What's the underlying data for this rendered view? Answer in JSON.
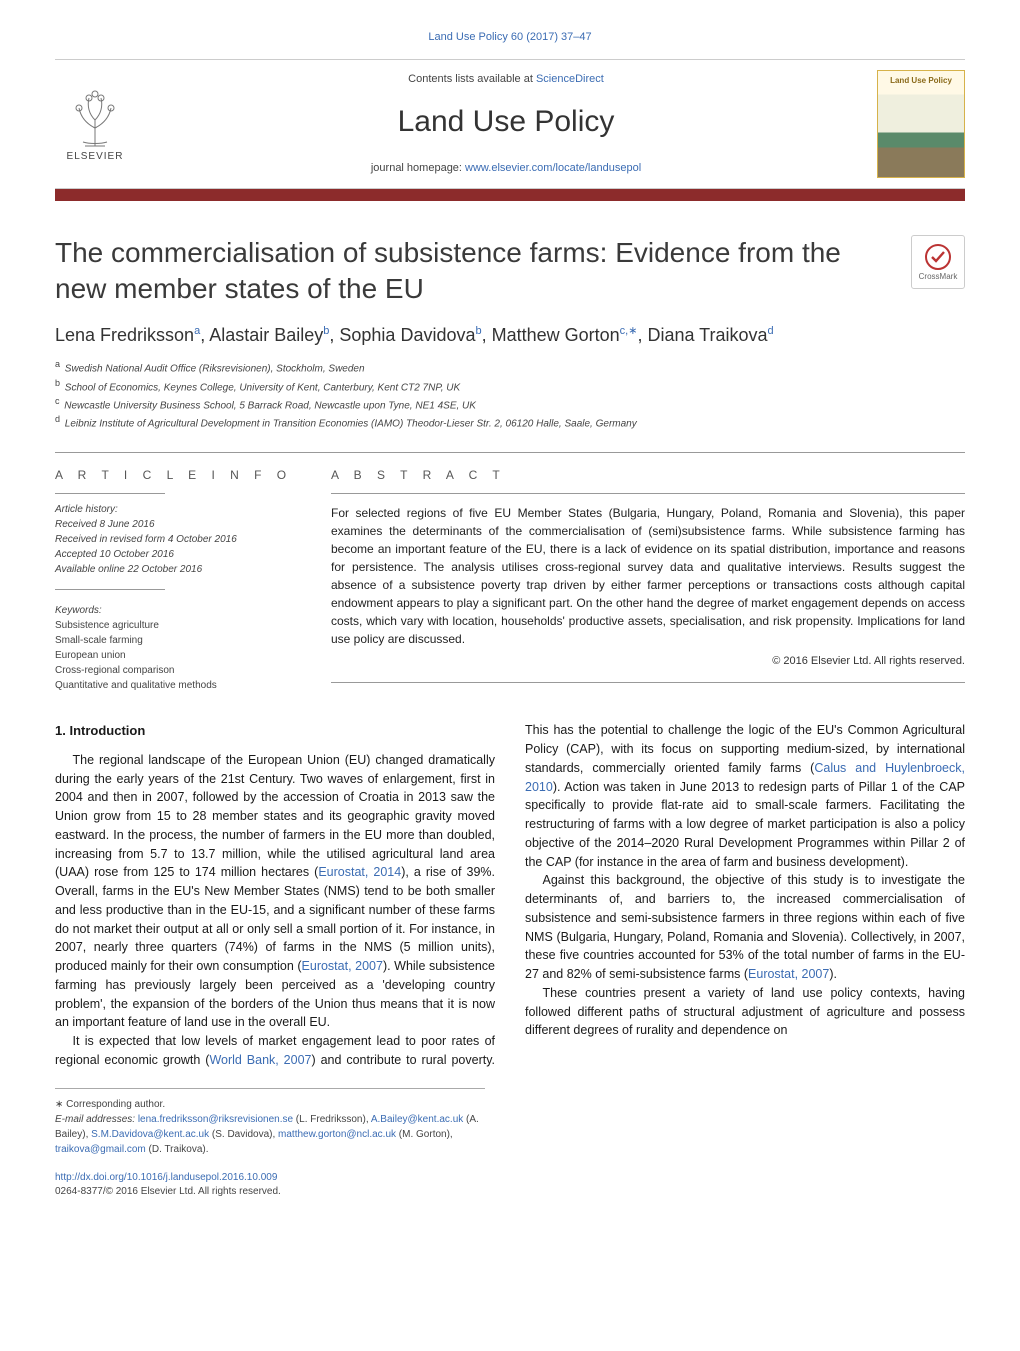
{
  "header": {
    "citation": "Land Use Policy 60 (2017) 37–47",
    "contents_prefix": "Contents lists available at ",
    "contents_link": "ScienceDirect",
    "journal": "Land Use Policy",
    "homepage_prefix": "journal homepage: ",
    "homepage_link": "www.elsevier.com/locate/landusepol",
    "publisher": "ELSEVIER",
    "cover_title": "Land Use Policy"
  },
  "accent_color": "#8c2b2b",
  "link_color": "#3b6cb3",
  "title": "The commercialisation of subsistence farms: Evidence from the new member states of the EU",
  "crossmark": "CrossMark",
  "authors_html": "Lena Fredriksson<sup>a</sup>, Alastair Bailey<sup>b</sup>, Sophia Davidova<sup>b</sup>, Matthew Gorton<sup>c,∗</sup>, Diana Traikova<sup>d</sup>",
  "affiliations": [
    {
      "sup": "a",
      "text": "Swedish National Audit Office (Riksrevisionen), Stockholm, Sweden"
    },
    {
      "sup": "b",
      "text": "School of Economics, Keynes College, University of Kent, Canterbury, Kent CT2 7NP, UK"
    },
    {
      "sup": "c",
      "text": "Newcastle University Business School, 5 Barrack Road, Newcastle upon Tyne, NE1 4SE, UK"
    },
    {
      "sup": "d",
      "text": "Leibniz Institute of Agricultural Development in Transition Economies (IAMO) Theodor-Lieser Str. 2, 06120 Halle, Saale, Germany"
    }
  ],
  "info": {
    "heading_left": "a r t i c l e   i n f o",
    "heading_right": "a b s t r a c t",
    "history_label": "Article history:",
    "history": [
      "Received 8 June 2016",
      "Received in revised form 4 October 2016",
      "Accepted 10 October 2016",
      "Available online 22 October 2016"
    ],
    "keywords_label": "Keywords:",
    "keywords": [
      "Subsistence agriculture",
      "Small-scale farming",
      "European union",
      "Cross-regional comparison",
      "Quantitative and qualitative methods"
    ]
  },
  "abstract": "For selected regions of five EU Member States (Bulgaria, Hungary, Poland, Romania and Slovenia), this paper examines the determinants of the commercialisation of (semi)subsistence farms. While subsistence farming has become an important feature of the EU, there is a lack of evidence on its spatial distribution, importance and reasons for persistence. The analysis utilises cross-regional survey data and qualitative interviews. Results suggest the absence of a subsistence poverty trap driven by either farmer perceptions or transactions costs although capital endowment appears to play a significant part. On the other hand the degree of market engagement depends on access costs, which vary with location, households' productive assets, specialisation, and risk propensity. Implications for land use policy are discussed.",
  "copyright": "© 2016 Elsevier Ltd. All rights reserved.",
  "section1": {
    "heading": "1.  Introduction",
    "p1a": "The regional landscape of the European Union (EU) changed dramatically during the early years of the 21st Century. Two waves of enlargement, first in 2004 and then in 2007, followed by the accession of Croatia in 2013 saw the Union grow from 15 to 28 member states and its geographic gravity moved eastward. In the process, the number of farmers in the EU more than doubled, increasing from 5.7 to 13.7 million, while the utilised agricultural land area (UAA) rose from 125 to 174 million hectares (",
    "p1_cite1": "Eurostat, 2014",
    "p1b": "), a rise of 39%. Overall, farms in the EU's New Member States (NMS) tend to be both smaller and less productive than in the EU-15, and a significant number of these farms do not market their output at all or only sell a small portion of it. For instance, in 2007, nearly three quarters (74%) of farms in the NMS (5 million units), produced mainly for their own consumption (",
    "p1_cite2": "Eurostat, 2007",
    "p1c": "). While subsistence farming has previously largely been perceived as a 'developing country ",
    "p1d": "problem', the expansion of the borders of the Union thus means that it is now an important feature of land use in the overall EU.",
    "p2a": "It is expected that low levels of market engagement lead to poor rates of regional economic growth (",
    "p2_cite1": "World Bank, 2007",
    "p2b": ") and contribute to rural poverty. This has the potential to challenge the logic of the EU's Common Agricultural Policy (CAP), with its focus on supporting medium-sized, by international standards, commercially oriented family farms (",
    "p2_cite2": "Calus and Huylenbroeck, 2010",
    "p2c": "). Action was taken in June 2013 to redesign parts of Pillar 1 of the CAP specifically to provide flat-rate aid to small-scale farmers. Facilitating the restructuring of farms with a low degree of market participation is also a policy objective of the 2014–2020 Rural Development Programmes within Pillar 2 of the CAP (for instance in the area of farm and business development).",
    "p3a": "Against this background, the objective of this study is to investigate the determinants of, and barriers to, the increased commercialisation of subsistence and semi-subsistence farmers in three regions within each of five NMS (Bulgaria, Hungary, Poland, Romania and Slovenia). Collectively, in 2007, these five countries accounted for 53% of the total number of farms in the EU-27 and 82% of semi-subsistence farms (",
    "p3_cite1": "Eurostat, 2007",
    "p3b": ").",
    "p4": "These countries present a variety of land use policy contexts, having followed different paths of structural adjustment of agriculture and possess different degrees of rurality and dependence on"
  },
  "footnotes": {
    "corr": "∗ Corresponding author.",
    "emails_label": "E-mail addresses: ",
    "emails": [
      {
        "addr": "lena.fredriksson@riksrevisionen.se",
        "who": "(L. Fredriksson),"
      },
      {
        "addr": "A.Bailey@kent.ac.uk",
        "who": "(A. Bailey),"
      },
      {
        "addr": "S.M.Davidova@kent.ac.uk",
        "who": "(S. Davidova),"
      },
      {
        "addr": "matthew.gorton@ncl.ac.uk",
        "who": "(M. Gorton),"
      },
      {
        "addr": "traikova@gmail.com",
        "who": "(D. Traikova)."
      }
    ]
  },
  "doi": {
    "link": "http://dx.doi.org/10.1016/j.landusepol.2016.10.009",
    "issn": "0264-8377/© 2016 Elsevier Ltd. All rights reserved."
  }
}
